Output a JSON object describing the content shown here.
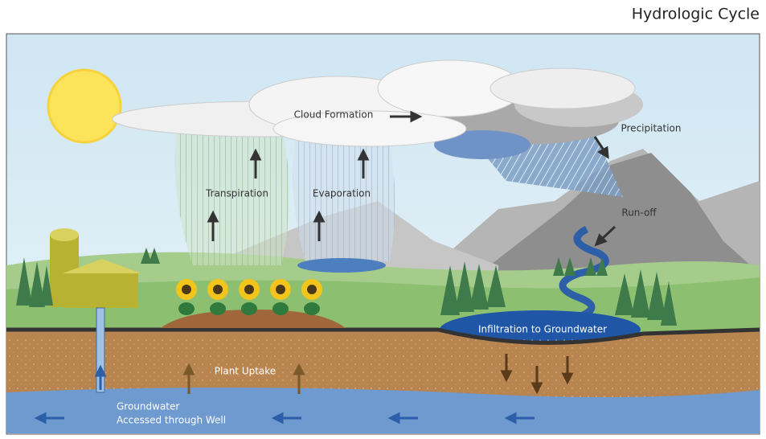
{
  "title": "Hydrologic Cycle",
  "labels": {
    "cloud_formation": "Cloud Formation",
    "precipitation": "Precipitation",
    "transpiration": "Transpiration",
    "evaporation": "Evaporation",
    "run_off": "Run-off",
    "infiltration": "Infiltration to Groundwater",
    "plant_uptake": "Plant Uptake",
    "groundwater": [
      "Groundwater",
      "Accessed through Well"
    ]
  }
}
